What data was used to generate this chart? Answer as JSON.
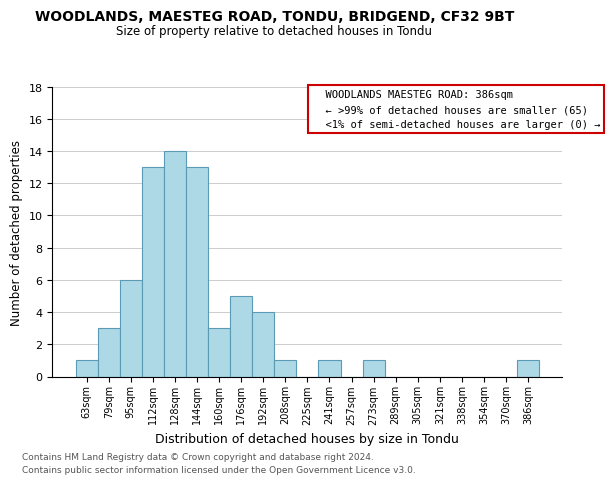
{
  "title": "WOODLANDS, MAESTEG ROAD, TONDU, BRIDGEND, CF32 9BT",
  "subtitle": "Size of property relative to detached houses in Tondu",
  "xlabel": "Distribution of detached houses by size in Tondu",
  "ylabel": "Number of detached properties",
  "bin_labels": [
    "63sqm",
    "79sqm",
    "95sqm",
    "112sqm",
    "128sqm",
    "144sqm",
    "160sqm",
    "176sqm",
    "192sqm",
    "208sqm",
    "225sqm",
    "241sqm",
    "257sqm",
    "273sqm",
    "289sqm",
    "305sqm",
    "321sqm",
    "338sqm",
    "354sqm",
    "370sqm",
    "386sqm"
  ],
  "bar_heights": [
    1,
    3,
    6,
    13,
    14,
    13,
    3,
    5,
    4,
    1,
    0,
    1,
    0,
    1,
    0,
    0,
    0,
    0,
    0,
    0,
    1
  ],
  "bar_color": "#add8e6",
  "bar_edge_color": "#5b9ab5",
  "ylim": [
    0,
    18
  ],
  "yticks": [
    0,
    2,
    4,
    6,
    8,
    10,
    12,
    14,
    16,
    18
  ],
  "legend_title": "WOODLANDS MAESTEG ROAD: 386sqm",
  "legend_line1": "← >99% of detached houses are smaller (65)",
  "legend_line2": "<1% of semi-detached houses are larger (0) →",
  "legend_box_color": "#ffffff",
  "legend_box_edge_color": "#cc0000",
  "footer_line1": "Contains HM Land Registry data © Crown copyright and database right 2024.",
  "footer_line2": "Contains public sector information licensed under the Open Government Licence v3.0."
}
